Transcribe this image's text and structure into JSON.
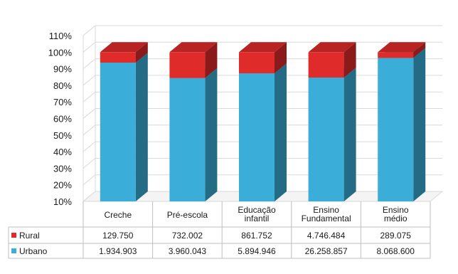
{
  "chart_data": {
    "type": "bar",
    "stacked": "percent",
    "three_d": true,
    "categories": [
      "Creche",
      "Pré-escola",
      "Educação infantil",
      "Ensino Fundamental",
      "Ensino médio"
    ],
    "category_labels": [
      [
        "Creche"
      ],
      [
        "Pré-escola"
      ],
      [
        "Educação",
        "infantil"
      ],
      [
        "Ensino",
        "Fundamental"
      ],
      [
        "Ensino",
        "médio"
      ]
    ],
    "series": [
      {
        "name": "Urbano",
        "color": "#3aaed8",
        "values": [
          1934903,
          3960043,
          5894946,
          26258857,
          8068600
        ],
        "labels": [
          "1.934.903",
          "3.960.043",
          "5.894.946",
          "26.258.857",
          "8.068.600"
        ]
      },
      {
        "name": "Rural",
        "color": "#e02b2b",
        "values": [
          129750,
          732002,
          861752,
          4746484,
          289075
        ],
        "labels": [
          "129.750",
          "732.002",
          "861.752",
          "4.746.484",
          "289.075"
        ]
      }
    ],
    "ylim": [
      0.1,
      1.1
    ],
    "yticks": [
      "10%",
      "20%",
      "30%",
      "40%",
      "50%",
      "60%",
      "70%",
      "80%",
      "90%",
      "100%",
      "110%"
    ],
    "legend_placement": "data-table-rows",
    "grid": true
  }
}
